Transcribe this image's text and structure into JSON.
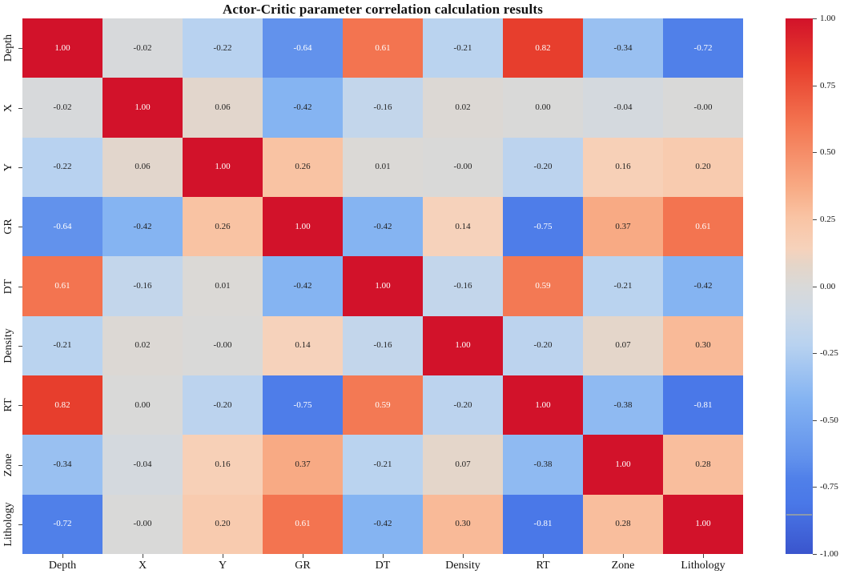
{
  "chart_data": {
    "type": "heatmap",
    "title": "Actor-Critic parameter correlation calculation results",
    "categories": [
      "Depth",
      "X",
      "Y",
      "GR",
      "DT",
      "Density",
      "RT",
      "Zone",
      "Lithology"
    ],
    "matrix_display": [
      [
        "1.00",
        "-0.02",
        "-0.22",
        "-0.64",
        "0.61",
        "-0.21",
        "0.82",
        "-0.34",
        "-0.72"
      ],
      [
        "-0.02",
        "1.00",
        "0.06",
        "-0.42",
        "-0.16",
        "0.02",
        "0.00",
        "-0.04",
        "-0.00"
      ],
      [
        "-0.22",
        "0.06",
        "1.00",
        "0.26",
        "0.01",
        "-0.00",
        "-0.20",
        "0.16",
        "0.20"
      ],
      [
        "-0.64",
        "-0.42",
        "0.26",
        "1.00",
        "-0.42",
        "0.14",
        "-0.75",
        "0.37",
        "0.61"
      ],
      [
        "0.61",
        "-0.16",
        "0.01",
        "-0.42",
        "1.00",
        "-0.16",
        "0.59",
        "-0.21",
        "-0.42"
      ],
      [
        "-0.21",
        "0.02",
        "-0.00",
        "0.14",
        "-0.16",
        "1.00",
        "-0.20",
        "0.07",
        "0.30"
      ],
      [
        "0.82",
        "0.00",
        "-0.20",
        "-0.75",
        "0.59",
        "-0.20",
        "1.00",
        "-0.38",
        "-0.81"
      ],
      [
        "-0.34",
        "-0.04",
        "0.16",
        "0.37",
        "-0.21",
        "0.07",
        "-0.38",
        "1.00",
        "0.28"
      ],
      [
        "-0.72",
        "-0.00",
        "0.20",
        "0.61",
        "-0.42",
        "0.30",
        "-0.81",
        "0.28",
        "1.00"
      ]
    ],
    "value_range": [
      -1,
      1
    ],
    "grid": false,
    "legend_position": "right",
    "colorbar_ticks": [
      "1.00",
      "0.75",
      "0.50",
      "0.25",
      "0.00",
      "-0.25",
      "-0.50",
      "-0.75",
      "-1.00"
    ],
    "colorbar_marker_value": -0.85,
    "colormap_stops": [
      [
        -1.0,
        "#3a55cd"
      ],
      [
        -0.81,
        "#4a78e8"
      ],
      [
        -0.72,
        "#5080e9"
      ],
      [
        -0.64,
        "#6292ec"
      ],
      [
        -0.42,
        "#85b4f2"
      ],
      [
        -0.22,
        "#b8d2f0"
      ],
      [
        -0.1,
        "#cdd9e6"
      ],
      [
        0.0,
        "#d9d9d8"
      ],
      [
        0.08,
        "#e5d5c8"
      ],
      [
        0.14,
        "#f6d2bb"
      ],
      [
        0.26,
        "#f9c3a3"
      ],
      [
        0.37,
        "#f8aa84"
      ],
      [
        0.61,
        "#f37450"
      ],
      [
        0.82,
        "#e73e2d"
      ],
      [
        1.0,
        "#d2122a"
      ]
    ],
    "cell_text_dark": "#1f1f1f",
    "cell_text_light": "#ffffff",
    "light_text_threshold": 0.5
  }
}
